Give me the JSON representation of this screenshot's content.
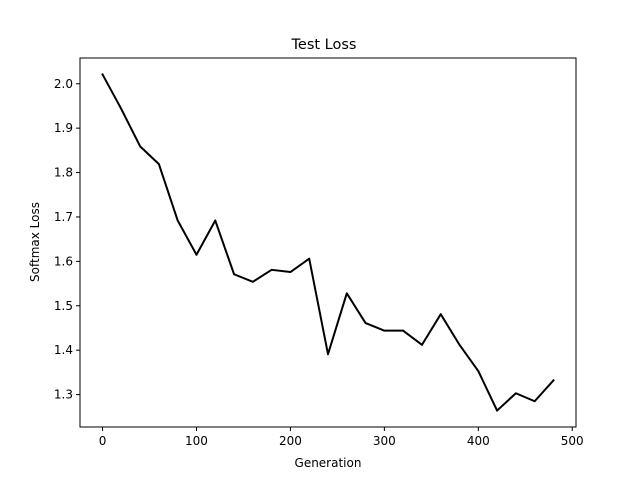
{
  "chart_data": {
    "type": "line",
    "title": "Test Loss",
    "xlabel": "Generation",
    "ylabel": "Softmax Loss",
    "xlim": [
      -24,
      504
    ],
    "ylim": [
      1.227,
      2.058
    ],
    "xticks": [
      0,
      100,
      200,
      300,
      400,
      500
    ],
    "yticks": [
      1.3,
      1.4,
      1.5,
      1.6,
      1.7,
      1.8,
      1.9,
      2.0
    ],
    "xtick_labels": [
      "0",
      "100",
      "200",
      "300",
      "400",
      "500"
    ],
    "ytick_labels": [
      "1.3",
      "1.4",
      "1.5",
      "1.6",
      "1.7",
      "1.8",
      "1.9",
      "2.0"
    ],
    "grid": false,
    "series": [
      {
        "color": "#000000",
        "x": [
          0,
          20,
          40,
          60,
          80,
          100,
          120,
          140,
          160,
          180,
          200,
          220,
          240,
          260,
          280,
          300,
          320,
          340,
          360,
          380,
          400,
          420,
          440,
          460,
          480
        ],
        "y": [
          2.021,
          1.943,
          1.859,
          1.819,
          1.692,
          1.615,
          1.692,
          1.571,
          1.554,
          1.581,
          1.576,
          1.606,
          1.391,
          1.528,
          1.461,
          1.444,
          1.444,
          1.412,
          1.481,
          1.412,
          1.353,
          1.264,
          1.303,
          1.285,
          1.332
        ]
      }
    ]
  }
}
